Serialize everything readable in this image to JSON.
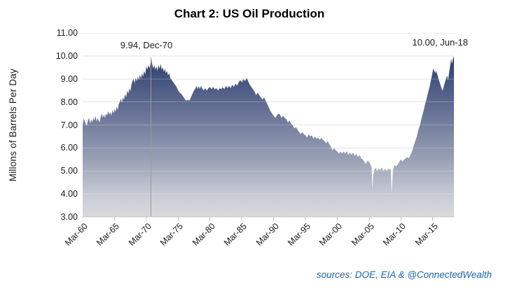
{
  "title": "Chart 2: US Oil Production",
  "chart_data": {
    "type": "area",
    "title": "Chart 2: US Oil Production",
    "ylabel": "Millons of Barrels Per Day",
    "xlabel": "",
    "source_note": "sources: DOE, EIA & @ConnectedWealth",
    "ylim": [
      3,
      11
    ],
    "xlim": [
      1960.17,
      2018.5
    ],
    "grid": "horizontal",
    "legend": "none",
    "ytick_values": [
      11,
      10,
      9,
      8,
      7,
      6,
      5,
      4,
      3
    ],
    "ytick_labels": [
      "11.00",
      "10.00",
      "9.00",
      "8.00",
      "7.00",
      "6.00",
      "5.00",
      "4.00",
      "3.00"
    ],
    "xtick_values": [
      1960.17,
      1965.17,
      1970.17,
      1975.17,
      1980.17,
      1985.17,
      1990.17,
      1995.17,
      2000.17,
      2005.17,
      2010.17,
      2015.17
    ],
    "xtick_labels": [
      "Mar-60",
      "Mar-65",
      "Mar-70",
      "Mar-75",
      "Mar-80",
      "Mar-85",
      "Mar-90",
      "Mar-95",
      "Mar-00",
      "Mar-05",
      "Mar-10",
      "Mar-15"
    ],
    "annotations": [
      {
        "text": "9.94, Dec-70",
        "x": 1970.92,
        "y": 9.94,
        "drop_line": true
      },
      {
        "text": "10.00, Jun-18",
        "x": 2018.5,
        "y": 10.0,
        "drop_line": false
      }
    ],
    "colors": {
      "gridline": "#d9d9d9",
      "grid_overlay": "rgba(255,255,255,0.25)",
      "drop_line": "#9b9b9b",
      "axis_line": "#cccccc",
      "tick": "#c0c0c0",
      "text": "#1a1a1a",
      "source_text": "#1b67ad",
      "fill_stops": [
        [
          "0%",
          "#1d3560"
        ],
        [
          "20%",
          "#3a4a77"
        ],
        [
          "45%",
          "#6b7698"
        ],
        [
          "70%",
          "#9ba3b6"
        ],
        [
          "88%",
          "#c8cbd5"
        ],
        [
          "100%",
          "#d9dade"
        ]
      ]
    },
    "series": [
      {
        "name": "US Oil Production",
        "points": [
          [
            1960.17,
            7.0
          ],
          [
            1960.33,
            7.3
          ],
          [
            1960.5,
            7.15
          ],
          [
            1960.67,
            7.05
          ],
          [
            1960.83,
            6.95
          ],
          [
            1961.0,
            7.2
          ],
          [
            1961.17,
            7.3
          ],
          [
            1961.33,
            7.05
          ],
          [
            1961.5,
            7.25
          ],
          [
            1961.67,
            7.1
          ],
          [
            1961.83,
            7.3
          ],
          [
            1962.0,
            7.2
          ],
          [
            1962.17,
            7.4
          ],
          [
            1962.33,
            7.15
          ],
          [
            1962.5,
            7.3
          ],
          [
            1962.67,
            7.2
          ],
          [
            1962.83,
            7.1
          ],
          [
            1963.0,
            7.35
          ],
          [
            1963.17,
            7.5
          ],
          [
            1963.33,
            7.3
          ],
          [
            1963.5,
            7.45
          ],
          [
            1963.67,
            7.3
          ],
          [
            1963.83,
            7.5
          ],
          [
            1964.0,
            7.4
          ],
          [
            1964.17,
            7.6
          ],
          [
            1964.33,
            7.45
          ],
          [
            1964.5,
            7.55
          ],
          [
            1964.67,
            7.4
          ],
          [
            1964.83,
            7.65
          ],
          [
            1965.0,
            7.5
          ],
          [
            1965.17,
            7.7
          ],
          [
            1965.33,
            7.55
          ],
          [
            1965.5,
            7.8
          ],
          [
            1965.67,
            7.65
          ],
          [
            1965.83,
            7.9
          ],
          [
            1966.0,
            8.0
          ],
          [
            1966.17,
            8.15
          ],
          [
            1966.33,
            7.95
          ],
          [
            1966.5,
            8.2
          ],
          [
            1966.67,
            8.1
          ],
          [
            1966.83,
            8.35
          ],
          [
            1967.0,
            8.2
          ],
          [
            1967.17,
            8.5
          ],
          [
            1967.33,
            8.35
          ],
          [
            1967.5,
            8.6
          ],
          [
            1967.67,
            8.45
          ],
          [
            1967.83,
            8.75
          ],
          [
            1968.0,
            8.9
          ],
          [
            1968.17,
            9.0
          ],
          [
            1968.33,
            8.8
          ],
          [
            1968.5,
            9.05
          ],
          [
            1968.67,
            8.9
          ],
          [
            1968.83,
            9.1
          ],
          [
            1969.0,
            8.95
          ],
          [
            1969.17,
            9.2
          ],
          [
            1969.33,
            9.0
          ],
          [
            1969.5,
            9.25
          ],
          [
            1969.67,
            9.1
          ],
          [
            1969.83,
            9.35
          ],
          [
            1970.0,
            9.2
          ],
          [
            1970.17,
            9.55
          ],
          [
            1970.33,
            9.4
          ],
          [
            1970.5,
            9.6
          ],
          [
            1970.67,
            9.45
          ],
          [
            1970.83,
            9.7
          ],
          [
            1970.92,
            9.94
          ],
          [
            1971.08,
            9.65
          ],
          [
            1971.25,
            9.45
          ],
          [
            1971.42,
            9.6
          ],
          [
            1971.58,
            9.4
          ],
          [
            1971.75,
            9.55
          ],
          [
            1971.92,
            9.35
          ],
          [
            1972.08,
            9.6
          ],
          [
            1972.25,
            9.45
          ],
          [
            1972.42,
            9.65
          ],
          [
            1972.58,
            9.4
          ],
          [
            1972.75,
            9.5
          ],
          [
            1972.92,
            9.3
          ],
          [
            1973.08,
            9.45
          ],
          [
            1973.25,
            9.25
          ],
          [
            1973.42,
            9.35
          ],
          [
            1973.58,
            9.15
          ],
          [
            1973.75,
            9.25
          ],
          [
            1973.92,
            9.05
          ],
          [
            1974.17,
            8.95
          ],
          [
            1974.42,
            8.85
          ],
          [
            1974.67,
            8.75
          ],
          [
            1974.92,
            8.65
          ],
          [
            1975.17,
            8.5
          ],
          [
            1975.42,
            8.4
          ],
          [
            1975.67,
            8.35
          ],
          [
            1975.92,
            8.25
          ],
          [
            1976.17,
            8.15
          ],
          [
            1976.42,
            8.05
          ],
          [
            1976.67,
            8.1
          ],
          [
            1976.92,
            8.05
          ],
          [
            1977.17,
            8.2
          ],
          [
            1977.42,
            8.35
          ],
          [
            1977.67,
            8.5
          ],
          [
            1977.92,
            8.6
          ],
          [
            1978.08,
            8.7
          ],
          [
            1978.25,
            8.55
          ],
          [
            1978.42,
            8.7
          ],
          [
            1978.58,
            8.55
          ],
          [
            1978.75,
            8.7
          ],
          [
            1978.92,
            8.6
          ],
          [
            1979.17,
            8.5
          ],
          [
            1979.42,
            8.6
          ],
          [
            1979.67,
            8.5
          ],
          [
            1979.92,
            8.6
          ],
          [
            1980.17,
            8.65
          ],
          [
            1980.42,
            8.55
          ],
          [
            1980.67,
            8.65
          ],
          [
            1980.92,
            8.55
          ],
          [
            1981.17,
            8.6
          ],
          [
            1981.42,
            8.5
          ],
          [
            1981.67,
            8.6
          ],
          [
            1981.92,
            8.55
          ],
          [
            1982.17,
            8.65
          ],
          [
            1982.42,
            8.55
          ],
          [
            1982.67,
            8.7
          ],
          [
            1982.92,
            8.6
          ],
          [
            1983.17,
            8.7
          ],
          [
            1983.42,
            8.6
          ],
          [
            1983.67,
            8.75
          ],
          [
            1983.92,
            8.65
          ],
          [
            1984.17,
            8.8
          ],
          [
            1984.42,
            8.7
          ],
          [
            1984.67,
            8.85
          ],
          [
            1984.92,
            8.95
          ],
          [
            1985.17,
            8.85
          ],
          [
            1985.42,
            9.0
          ],
          [
            1985.67,
            8.9
          ],
          [
            1985.92,
            9.05
          ],
          [
            1986.17,
            8.9
          ],
          [
            1986.42,
            8.75
          ],
          [
            1986.67,
            8.65
          ],
          [
            1986.92,
            8.55
          ],
          [
            1987.17,
            8.45
          ],
          [
            1987.42,
            8.3
          ],
          [
            1987.67,
            8.4
          ],
          [
            1987.92,
            8.3
          ],
          [
            1988.17,
            8.2
          ],
          [
            1988.42,
            8.1
          ],
          [
            1988.67,
            8.2
          ],
          [
            1988.92,
            8.05
          ],
          [
            1989.17,
            7.9
          ],
          [
            1989.42,
            7.75
          ],
          [
            1989.67,
            7.6
          ],
          [
            1989.92,
            7.5
          ],
          [
            1990.17,
            7.4
          ],
          [
            1990.42,
            7.3
          ],
          [
            1990.67,
            7.4
          ],
          [
            1990.92,
            7.5
          ],
          [
            1991.17,
            7.45
          ],
          [
            1991.42,
            7.3
          ],
          [
            1991.67,
            7.4
          ],
          [
            1991.92,
            7.3
          ],
          [
            1992.17,
            7.25
          ],
          [
            1992.42,
            7.1
          ],
          [
            1992.67,
            7.2
          ],
          [
            1992.92,
            7.05
          ],
          [
            1993.17,
            7.0
          ],
          [
            1993.42,
            6.85
          ],
          [
            1993.67,
            6.9
          ],
          [
            1993.92,
            6.8
          ],
          [
            1994.17,
            6.7
          ],
          [
            1994.42,
            6.6
          ],
          [
            1994.67,
            6.7
          ],
          [
            1994.92,
            6.6
          ],
          [
            1995.17,
            6.55
          ],
          [
            1995.42,
            6.45
          ],
          [
            1995.67,
            6.6
          ],
          [
            1995.92,
            6.5
          ],
          [
            1996.17,
            6.55
          ],
          [
            1996.42,
            6.4
          ],
          [
            1996.67,
            6.5
          ],
          [
            1996.92,
            6.4
          ],
          [
            1997.17,
            6.45
          ],
          [
            1997.42,
            6.35
          ],
          [
            1997.67,
            6.45
          ],
          [
            1997.92,
            6.35
          ],
          [
            1998.17,
            6.3
          ],
          [
            1998.42,
            6.2
          ],
          [
            1998.67,
            6.3
          ],
          [
            1998.92,
            6.15
          ],
          [
            1999.17,
            6.05
          ],
          [
            1999.42,
            5.9
          ],
          [
            1999.67,
            6.0
          ],
          [
            1999.92,
            5.9
          ],
          [
            2000.17,
            5.85
          ],
          [
            2000.42,
            5.75
          ],
          [
            2000.67,
            5.85
          ],
          [
            2000.92,
            5.75
          ],
          [
            2001.17,
            5.85
          ],
          [
            2001.42,
            5.75
          ],
          [
            2001.67,
            5.85
          ],
          [
            2001.92,
            5.7
          ],
          [
            2002.17,
            5.8
          ],
          [
            2002.42,
            5.7
          ],
          [
            2002.67,
            5.8
          ],
          [
            2002.92,
            5.65
          ],
          [
            2003.17,
            5.75
          ],
          [
            2003.42,
            5.6
          ],
          [
            2003.67,
            5.7
          ],
          [
            2003.92,
            5.55
          ],
          [
            2004.17,
            5.5
          ],
          [
            2004.42,
            5.4
          ],
          [
            2004.67,
            5.3
          ],
          [
            2004.92,
            5.45
          ],
          [
            2005.17,
            5.4
          ],
          [
            2005.42,
            5.25
          ],
          [
            2005.58,
            5.15
          ],
          [
            2005.67,
            4.2
          ],
          [
            2005.83,
            4.85
          ],
          [
            2006.0,
            5.05
          ],
          [
            2006.17,
            5.15
          ],
          [
            2006.42,
            5.0
          ],
          [
            2006.67,
            5.1
          ],
          [
            2006.92,
            5.05
          ],
          [
            2007.17,
            5.15
          ],
          [
            2007.42,
            5.0
          ],
          [
            2007.67,
            5.1
          ],
          [
            2007.92,
            5.0
          ],
          [
            2008.17,
            5.1
          ],
          [
            2008.42,
            5.05
          ],
          [
            2008.58,
            5.1
          ],
          [
            2008.7,
            3.97
          ],
          [
            2008.92,
            5.05
          ],
          [
            2009.17,
            5.25
          ],
          [
            2009.42,
            5.2
          ],
          [
            2009.67,
            5.3
          ],
          [
            2009.92,
            5.4
          ],
          [
            2010.17,
            5.5
          ],
          [
            2010.42,
            5.4
          ],
          [
            2010.67,
            5.5
          ],
          [
            2010.92,
            5.55
          ],
          [
            2011.17,
            5.6
          ],
          [
            2011.42,
            5.55
          ],
          [
            2011.67,
            5.7
          ],
          [
            2011.92,
            5.85
          ],
          [
            2012.17,
            6.1
          ],
          [
            2012.42,
            6.3
          ],
          [
            2012.67,
            6.5
          ],
          [
            2012.92,
            6.8
          ],
          [
            2013.17,
            7.0
          ],
          [
            2013.42,
            7.3
          ],
          [
            2013.67,
            7.55
          ],
          [
            2013.92,
            7.85
          ],
          [
            2014.17,
            8.1
          ],
          [
            2014.42,
            8.4
          ],
          [
            2014.67,
            8.65
          ],
          [
            2014.92,
            9.0
          ],
          [
            2015.08,
            9.2
          ],
          [
            2015.25,
            9.45
          ],
          [
            2015.42,
            9.35
          ],
          [
            2015.58,
            9.25
          ],
          [
            2015.7,
            9.35
          ],
          [
            2015.92,
            9.15
          ],
          [
            2016.08,
            9.0
          ],
          [
            2016.25,
            8.85
          ],
          [
            2016.42,
            8.7
          ],
          [
            2016.58,
            8.55
          ],
          [
            2016.75,
            8.5
          ],
          [
            2016.92,
            8.7
          ],
          [
            2017.08,
            8.85
          ],
          [
            2017.25,
            9.0
          ],
          [
            2017.42,
            9.15
          ],
          [
            2017.5,
            9.05
          ],
          [
            2017.58,
            8.95
          ],
          [
            2017.75,
            9.3
          ],
          [
            2017.92,
            9.6
          ],
          [
            2018.0,
            9.75
          ],
          [
            2018.08,
            9.9
          ],
          [
            2018.17,
            9.65
          ],
          [
            2018.33,
            9.85
          ],
          [
            2018.5,
            10.0
          ]
        ]
      }
    ]
  }
}
